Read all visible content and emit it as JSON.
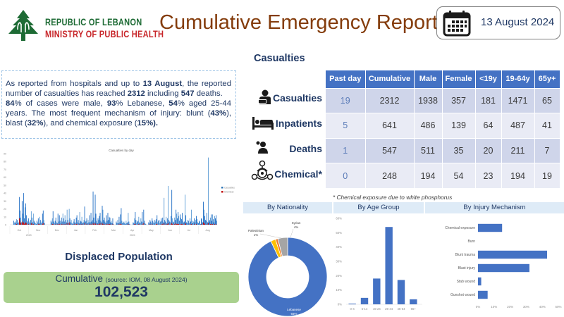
{
  "header": {
    "org_line1": "REPUBLIC OF LEBANON",
    "org_line2": "MINISTRY OF PUBLIC HEALTH",
    "title": "Cumulative Emergency Report",
    "date": "13 August 2024",
    "icons": {
      "logo": "cedar-tree-logo",
      "date": "calendar-icon"
    }
  },
  "summary": {
    "p1_a": "As reported from hospitals and up to ",
    "p1_b": "13 August",
    "p1_c": ", the reported number of casualties has reached ",
    "p1_d": "2312",
    "p1_e": " including ",
    "p1_f": "547",
    "p1_g": " deaths.",
    "p2_a": "84",
    "p2_b": "% of cases were male, ",
    "p2_c": "93",
    "p2_d": "% Lebanese, ",
    "p2_e": "54",
    "p2_f": "% aged 25-44 years. The most frequent mechanism of injury: blunt (",
    "p2_g": "43%",
    "p2_h": "), blast (",
    "p2_i": "32%",
    "p2_j": "), and chemical exposure (",
    "p2_k": "15%).",
    "p2_l": ""
  },
  "displaced": {
    "title": "Displaced Population",
    "label": "Cumulative",
    "source": "(source: IOM, 08 August 2024)",
    "value": "102,523"
  },
  "casualties": {
    "title": "Casualties",
    "columns": [
      "Past day",
      "Cumulative",
      "Male",
      "Female",
      "<19y",
      "19-64y",
      "65y+"
    ],
    "rows": [
      {
        "label": "Casualties",
        "icon": "injured-person-icon",
        "values": [
          "19",
          "2312",
          "1938",
          "357",
          "181",
          "1471",
          "65"
        ]
      },
      {
        "label": "Inpatients",
        "icon": "hospital-bed-icon",
        "values": [
          "5",
          "641",
          "486",
          "139",
          "64",
          "487",
          "41"
        ]
      },
      {
        "label": "Deaths",
        "icon": "deceased-person-icon",
        "values": [
          "1",
          "547",
          "511",
          "35",
          "20",
          "211",
          "7"
        ]
      },
      {
        "label": "Chemical*",
        "icon": "chemical-hazard-icon",
        "values": [
          "0",
          "248",
          "194",
          "54",
          "23",
          "194",
          "19"
        ]
      }
    ],
    "footnote": "* Chemical exposure due to white phosphorus"
  },
  "colors": {
    "title_brown": "#843c0c",
    "navy": "#1f3864",
    "table_header": "#4472c4",
    "chart_blue": "#4472c4",
    "daily_blue": "#2e75b6",
    "daily_red": "#c00000",
    "displaced_green": "#a9d18e"
  },
  "chart_data": [
    {
      "type": "bar",
      "title": "Casualties by day",
      "xlabel": "",
      "ylabel": "",
      "ylim": [
        0,
        90
      ],
      "yticks": [
        "0",
        "10",
        "20",
        "30",
        "40",
        "50",
        "60",
        "70",
        "80",
        "90"
      ],
      "months": [
        "Oct",
        "Nov",
        "Dec",
        "Jan",
        "Feb",
        "Mar",
        "Apr",
        "May",
        "Jun",
        "Jul",
        "Aug"
      ],
      "years": [
        "2023",
        "2024"
      ],
      "legend": [
        "Casualties",
        "Chemical"
      ],
      "legend_position": "right",
      "series": [
        {
          "name": "Casualties",
          "values": [
            0,
            0,
            0,
            0,
            0,
            5,
            3,
            2,
            4,
            7,
            6,
            2,
            3,
            35,
            18,
            9,
            3,
            30,
            14,
            40,
            8,
            22,
            27,
            12,
            3,
            5,
            8,
            4,
            2,
            6,
            17,
            9,
            3,
            14,
            5,
            3,
            2,
            1,
            5,
            3,
            8,
            2,
            10,
            6,
            2,
            4,
            14,
            18,
            6,
            2,
            0,
            0,
            0,
            0,
            0,
            0,
            0,
            0,
            5,
            3,
            8,
            17,
            4,
            2,
            5,
            9,
            3,
            2,
            14,
            4,
            12,
            5,
            2,
            9,
            4,
            14,
            8,
            4,
            12,
            6,
            3,
            19,
            6,
            2,
            20,
            8,
            3,
            6,
            2,
            1,
            4,
            7,
            3,
            2,
            9,
            12,
            3,
            6,
            2,
            16,
            5,
            4,
            10,
            2,
            3,
            6,
            23,
            4,
            5,
            8,
            2,
            6,
            3,
            12,
            3,
            15,
            4,
            6,
            42,
            9,
            3,
            38,
            14,
            5,
            2,
            8,
            6,
            11,
            15,
            5,
            3,
            24,
            19,
            6,
            9,
            4,
            2,
            12,
            5,
            15,
            6,
            10,
            9,
            3,
            5,
            2,
            8,
            1,
            0,
            0,
            0,
            4,
            2,
            6,
            2,
            10,
            3,
            13,
            21,
            5,
            2,
            3,
            4,
            2,
            1,
            5,
            2,
            3,
            15,
            4,
            1,
            0,
            0,
            0,
            0,
            3,
            2,
            8,
            16,
            6,
            2,
            4,
            5,
            10,
            3,
            2,
            8,
            4,
            16,
            3,
            19,
            5,
            2,
            1,
            0,
            0,
            0,
            3,
            2,
            6,
            4,
            2,
            8,
            5,
            3,
            2,
            6,
            4,
            7,
            12,
            3,
            5,
            6,
            2,
            4,
            8,
            5,
            9,
            3,
            34,
            6,
            4,
            10,
            2,
            8,
            49,
            6,
            4,
            3,
            11,
            44,
            8,
            4,
            3,
            9,
            6,
            19,
            14,
            8,
            16,
            11,
            5,
            13,
            9,
            7,
            15,
            5,
            3,
            4,
            38,
            12,
            3,
            6,
            2,
            5,
            2,
            8,
            4,
            19,
            5,
            2,
            4,
            8,
            3,
            6,
            11,
            7,
            3,
            2,
            5,
            4,
            1,
            8,
            7,
            3,
            29,
            19,
            11,
            6,
            5,
            15,
            3,
            85,
            4,
            6,
            9,
            13,
            5,
            13,
            7,
            3,
            11,
            8,
            12,
            5
          ],
          "note": "approximate daily values read from gridlines"
        },
        {
          "name": "Chemical",
          "values": [
            0,
            0,
            0,
            0,
            0,
            0,
            0,
            0,
            0,
            1,
            0,
            0,
            0,
            8,
            4,
            2,
            0,
            4,
            2,
            3,
            1,
            2,
            3,
            2,
            0,
            0,
            1,
            0,
            0,
            0,
            2,
            1,
            0,
            1,
            0,
            0,
            0,
            0,
            0,
            0,
            1,
            0,
            1,
            0,
            0,
            0,
            1,
            2,
            0,
            0,
            0,
            0,
            0,
            0,
            0,
            0,
            0,
            0,
            0,
            0,
            1,
            1,
            0,
            0,
            0,
            1,
            0,
            0,
            1,
            0,
            1,
            0,
            0,
            1,
            0,
            1,
            0,
            0,
            1,
            0,
            0,
            2,
            0,
            0,
            3,
            1,
            0,
            0,
            0,
            0,
            0,
            1,
            0,
            0,
            1,
            1,
            0,
            0,
            0,
            1,
            0,
            0,
            1,
            0,
            0,
            0,
            2,
            0,
            0,
            1,
            0,
            0,
            0,
            1,
            0,
            1,
            0,
            0,
            2,
            1,
            0,
            2,
            1,
            0,
            0,
            1,
            0,
            1,
            2,
            0,
            0,
            2,
            1,
            0,
            1,
            0,
            0,
            1,
            0,
            1,
            0,
            1,
            1,
            0,
            0,
            0,
            1,
            0,
            0,
            0,
            0,
            0,
            0,
            0,
            0,
            1,
            0,
            1,
            1,
            0,
            0,
            0,
            0,
            0,
            0,
            0,
            0,
            0,
            1,
            0,
            0,
            0,
            0,
            0,
            0,
            0,
            0,
            1,
            1,
            0,
            0,
            0,
            0,
            1,
            0,
            0,
            0,
            0,
            1,
            0,
            2,
            0,
            0,
            0,
            0,
            0,
            0,
            0,
            0,
            1,
            0,
            0,
            1,
            0,
            0,
            0,
            0,
            0,
            1,
            1,
            0,
            0,
            0,
            0,
            0,
            1,
            0,
            1,
            0,
            2,
            0,
            0,
            1,
            0,
            1,
            2,
            0,
            0,
            0,
            1,
            2,
            1,
            0,
            0,
            1,
            0,
            2,
            1,
            1,
            1,
            1,
            0,
            1,
            0,
            1,
            1,
            0,
            0,
            0,
            2,
            1,
            0,
            0,
            0,
            0,
            0,
            1,
            0,
            1,
            0,
            0,
            0,
            1,
            0,
            0,
            1,
            0,
            0,
            0,
            0,
            0,
            0,
            1,
            0,
            0,
            3,
            2,
            1,
            0,
            0,
            1,
            0,
            2,
            0,
            0,
            1,
            1,
            0,
            1,
            0,
            0,
            1,
            0,
            1,
            0
          ]
        }
      ]
    },
    {
      "type": "pie",
      "title": "By Nationality",
      "donut": true,
      "categories": [
        "Lebanese",
        "Syrian",
        "Palestinian"
      ],
      "values": [
        93,
        4,
        1
      ],
      "value_labels": [
        "93%",
        "4%",
        "1%"
      ],
      "colors": [
        "#4472c4",
        "#a5a5a5",
        "#ed7d31"
      ],
      "extra_segment": {
        "name": "Other",
        "value": 2,
        "color": "#ffc000"
      }
    },
    {
      "type": "bar",
      "title": "By Age Group",
      "categories": [
        "0-4",
        "5-14",
        "15-24",
        "25-44",
        "45-64",
        "65+"
      ],
      "values": [
        0.5,
        4.5,
        18,
        54,
        17,
        3.5
      ],
      "ylim": [
        0,
        60
      ],
      "yticks": [
        "0%",
        "10%",
        "20%",
        "30%",
        "40%",
        "50%",
        "60%"
      ],
      "xlabel": "",
      "ylabel": ""
    },
    {
      "type": "bar",
      "orientation": "horizontal",
      "title": "By Injury Mechanism",
      "categories": [
        "Chemical exposure",
        "Burn",
        "Blunt trauma",
        "Blast injury",
        "Stab wound",
        "Gunshot wound"
      ],
      "values": [
        15,
        0,
        43,
        32,
        2,
        6
      ],
      "xlim": [
        0,
        50
      ],
      "xticks": [
        "0%",
        "10%",
        "20%",
        "30%",
        "40%",
        "50%"
      ],
      "xlabel": "",
      "ylabel": ""
    }
  ]
}
